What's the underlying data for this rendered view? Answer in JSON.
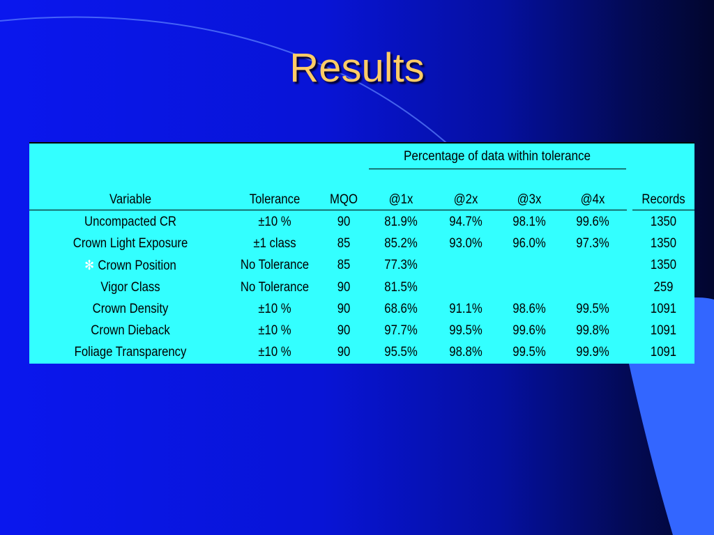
{
  "slide": {
    "title": "Results",
    "bullet_icon": "asterisk-bullet-icon",
    "colors": {
      "title": "#ffcc66",
      "table_bg": "#33ffff",
      "background": "#0a17ee",
      "accent_shape": "#3366ff"
    }
  },
  "table": {
    "group_header": "Percentage of data within tolerance",
    "columns": [
      "Variable",
      "Tolerance",
      "MQO",
      "@1x",
      "@2x",
      "@3x",
      "@4x",
      "Records"
    ],
    "rows": [
      {
        "variable": "Uncompacted CR",
        "tolerance": "±10 %",
        "mqo": "90",
        "x1": "81.9%",
        "x2": "94.7%",
        "x3": "98.1%",
        "x4": "99.6%",
        "records": "1350",
        "bullet": ""
      },
      {
        "variable": "Crown Light Exposure",
        "tolerance": "±1 class",
        "mqo": "85",
        "x1": "85.2%",
        "x2": "93.0%",
        "x3": "96.0%",
        "x4": "97.3%",
        "records": "1350",
        "bullet": ""
      },
      {
        "variable": "Crown Position",
        "tolerance": "No Tolerance",
        "mqo": "85",
        "x1": "77.3%",
        "x2": "",
        "x3": "",
        "x4": "",
        "records": "1350",
        "bullet": "✻"
      },
      {
        "variable": "Vigor Class",
        "tolerance": "No Tolerance",
        "mqo": "90",
        "x1": "81.5%",
        "x2": "",
        "x3": "",
        "x4": "",
        "records": "259",
        "bullet": ""
      },
      {
        "variable": "Crown Density",
        "tolerance": "±10 %",
        "mqo": "90",
        "x1": "68.6%",
        "x2": "91.1%",
        "x3": "98.6%",
        "x4": "99.5%",
        "records": "1091",
        "bullet": ""
      },
      {
        "variable": "Crown Dieback",
        "tolerance": "±10 %",
        "mqo": "90",
        "x1": "97.7%",
        "x2": "99.5%",
        "x3": "99.6%",
        "x4": "99.8%",
        "records": "1091",
        "bullet": ""
      },
      {
        "variable": "Foliage Transparency",
        "tolerance": "±10 %",
        "mqo": "90",
        "x1": "95.5%",
        "x2": "98.8%",
        "x3": "99.5%",
        "x4": "99.9%",
        "records": "1091",
        "bullet": ""
      }
    ]
  }
}
